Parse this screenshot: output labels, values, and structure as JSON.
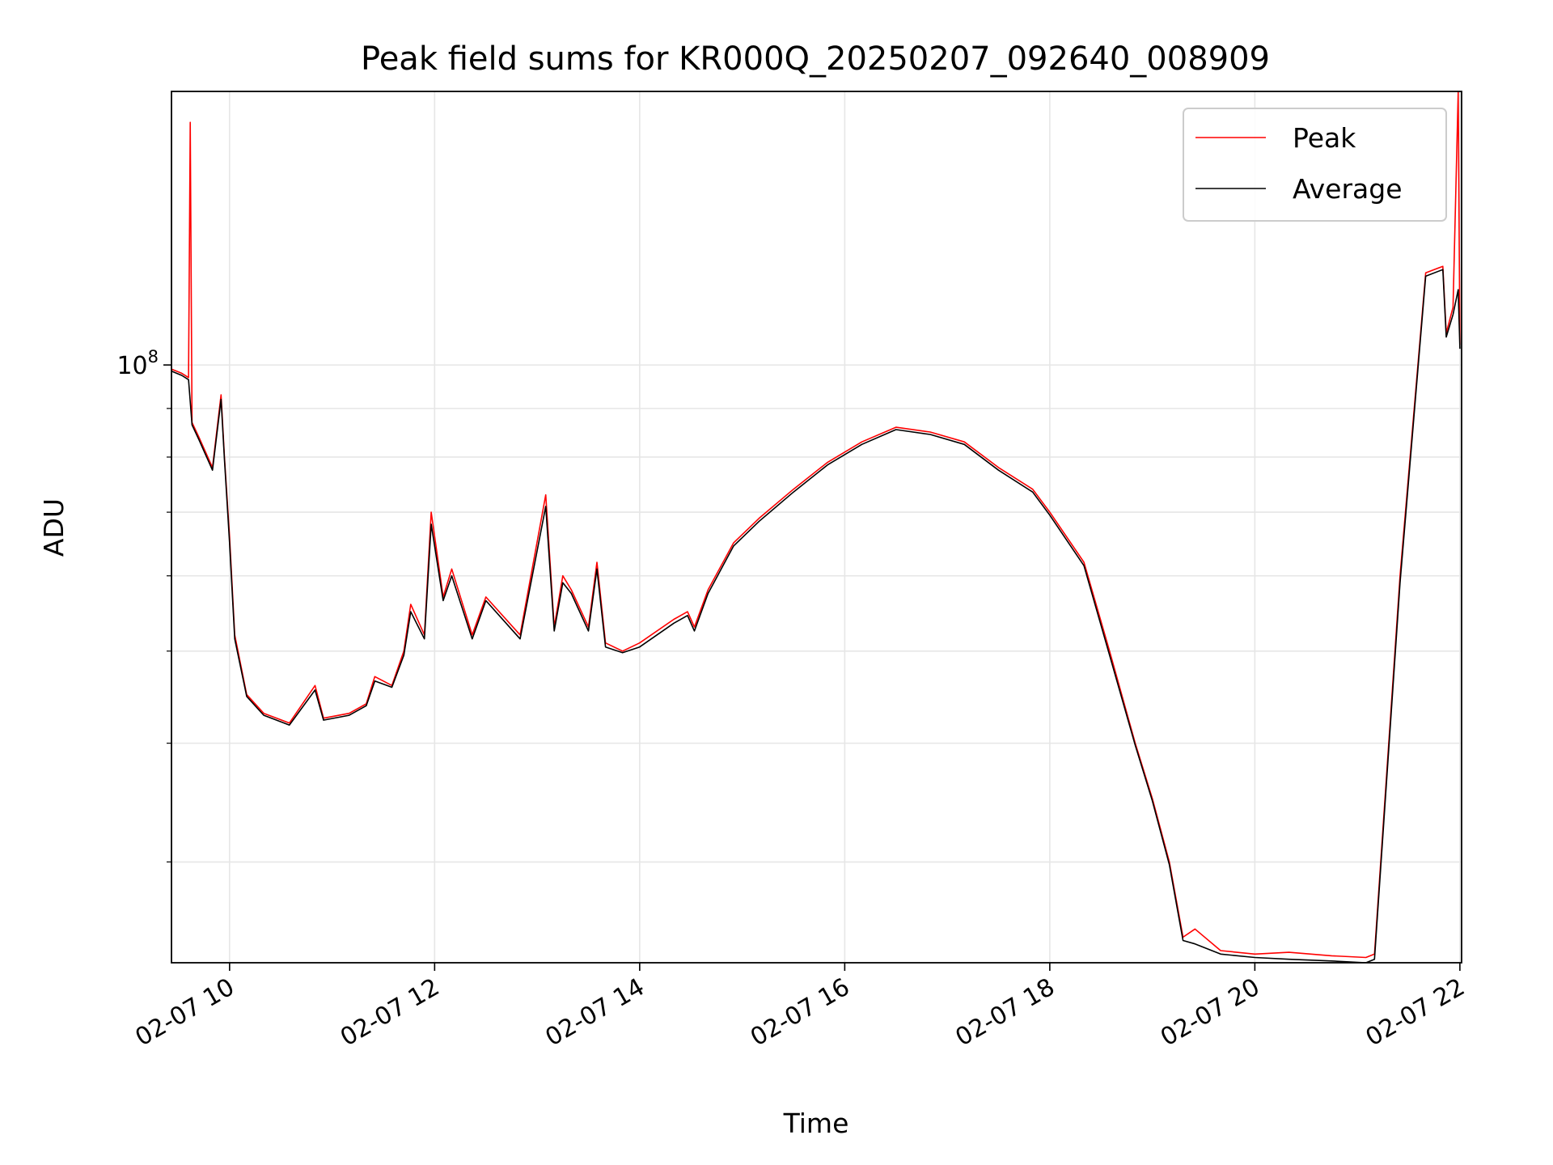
{
  "chart_data": {
    "type": "line",
    "title": "Peak field sums for KR000Q_20250207_092640_008909",
    "xlabel": "Time",
    "ylabel": "ADU",
    "y_scale": "log",
    "y_tick_label": {
      "base": "10",
      "exp": "8",
      "value": 100000000
    },
    "ylim": [
      23500000,
      194000000
    ],
    "x_range": [
      "02-07 09:26",
      "02-07 22:01"
    ],
    "x_ticks": [
      "02-07 10",
      "02-07 12",
      "02-07 14",
      "02-07 16",
      "02-07 18",
      "02-07 20",
      "02-07 22"
    ],
    "grid": true,
    "legend_position": "top-right",
    "colors": {
      "Peak": "#ff0000",
      "Average": "#000000"
    },
    "series": [
      {
        "name": "Peak",
        "x": [
          "02-07 09:26",
          "02-07 09:32",
          "02-07 09:36",
          "02-07 09:37",
          "02-07 09:38",
          "02-07 09:42",
          "02-07 09:50",
          "02-07 09:55",
          "02-07 09:57",
          "02-07 10:00",
          "02-07 10:03",
          "02-07 10:10",
          "02-07 10:20",
          "02-07 10:35",
          "02-07 10:50",
          "02-07 10:55",
          "02-07 11:10",
          "02-07 11:20",
          "02-07 11:25",
          "02-07 11:35",
          "02-07 11:42",
          "02-07 11:46",
          "02-07 11:54",
          "02-07 11:58",
          "02-07 12:05",
          "02-07 12:10",
          "02-07 12:22",
          "02-07 12:30",
          "02-07 12:50",
          "02-07 13:05",
          "02-07 13:10",
          "02-07 13:15",
          "02-07 13:20",
          "02-07 13:30",
          "02-07 13:35",
          "02-07 13:40",
          "02-07 13:50",
          "02-07 14:00",
          "02-07 14:20",
          "02-07 14:28",
          "02-07 14:32",
          "02-07 14:40",
          "02-07 14:55",
          "02-07 15:10",
          "02-07 15:30",
          "02-07 15:50",
          "02-07 16:10",
          "02-07 16:30",
          "02-07 16:50",
          "02-07 17:10",
          "02-07 17:30",
          "02-07 17:50",
          "02-07 18:00",
          "02-07 18:20",
          "02-07 18:35",
          "02-07 18:50",
          "02-07 19:00",
          "02-07 19:10",
          "02-07 19:18",
          "02-07 19:25",
          "02-07 19:40",
          "02-07 20:00",
          "02-07 20:20",
          "02-07 20:45",
          "02-07 21:05",
          "02-07 21:10",
          "02-07 21:25",
          "02-07 21:40",
          "02-07 21:50",
          "02-07 21:52",
          "02-07 21:56",
          "02-07 21:59",
          "02-07 22:00"
        ],
        "y": [
          99000000,
          98000000,
          97000000,
          180000000,
          87000000,
          84000000,
          78000000,
          93000000,
          80000000,
          66000000,
          52000000,
          45000000,
          43000000,
          42000000,
          46000000,
          42500000,
          43000000,
          44000000,
          47000000,
          46000000,
          50000000,
          56000000,
          52000000,
          70000000,
          57000000,
          61000000,
          52000000,
          57000000,
          52000000,
          73000000,
          53000000,
          60000000,
          58000000,
          53000000,
          62000000,
          51000000,
          50000000,
          51000000,
          54000000,
          55000000,
          53000000,
          58000000,
          65000000,
          69000000,
          74000000,
          79000000,
          83000000,
          86000000,
          85000000,
          83000000,
          78000000,
          74000000,
          70000000,
          62000000,
          50000000,
          40000000,
          35000000,
          30000000,
          25000000,
          25500000,
          24200000,
          24000000,
          24100000,
          23900000,
          23800000,
          24000000,
          60000000,
          125000000,
          127000000,
          108000000,
          115000000,
          194000000,
          105000000
        ]
      },
      {
        "name": "Average",
        "x": [
          "02-07 09:26",
          "02-07 09:32",
          "02-07 09:36",
          "02-07 09:38",
          "02-07 09:42",
          "02-07 09:50",
          "02-07 09:55",
          "02-07 09:57",
          "02-07 10:00",
          "02-07 10:03",
          "02-07 10:10",
          "02-07 10:20",
          "02-07 10:35",
          "02-07 10:50",
          "02-07 10:55",
          "02-07 11:10",
          "02-07 11:20",
          "02-07 11:25",
          "02-07 11:35",
          "02-07 11:42",
          "02-07 11:46",
          "02-07 11:54",
          "02-07 11:58",
          "02-07 12:05",
          "02-07 12:10",
          "02-07 12:22",
          "02-07 12:30",
          "02-07 12:50",
          "02-07 13:05",
          "02-07 13:10",
          "02-07 13:15",
          "02-07 13:20",
          "02-07 13:30",
          "02-07 13:35",
          "02-07 13:40",
          "02-07 13:50",
          "02-07 14:00",
          "02-07 14:20",
          "02-07 14:28",
          "02-07 14:32",
          "02-07 14:40",
          "02-07 14:55",
          "02-07 15:10",
          "02-07 15:30",
          "02-07 15:50",
          "02-07 16:10",
          "02-07 16:30",
          "02-07 16:50",
          "02-07 17:10",
          "02-07 17:30",
          "02-07 17:50",
          "02-07 18:00",
          "02-07 18:20",
          "02-07 18:35",
          "02-07 18:50",
          "02-07 19:00",
          "02-07 19:10",
          "02-07 19:18",
          "02-07 19:25",
          "02-07 19:40",
          "02-07 20:00",
          "02-07 20:20",
          "02-07 20:45",
          "02-07 21:05",
          "02-07 21:10",
          "02-07 21:25",
          "02-07 21:40",
          "02-07 21:50",
          "02-07 21:52",
          "02-07 21:56",
          "02-07 21:59",
          "02-07 22:00"
        ],
        "y": [
          98500000,
          97500000,
          96500000,
          86500000,
          83500000,
          77500000,
          92000000,
          79500000,
          65000000,
          51500000,
          44800000,
          42800000,
          41800000,
          45500000,
          42300000,
          42800000,
          43800000,
          46500000,
          45800000,
          49500000,
          55000000,
          51500000,
          68000000,
          56500000,
          60000000,
          51500000,
          56500000,
          51500000,
          71000000,
          52500000,
          59000000,
          57500000,
          52500000,
          61000000,
          50500000,
          49800000,
          50500000,
          53500000,
          54500000,
          52500000,
          57500000,
          64500000,
          68500000,
          73500000,
          78500000,
          82500000,
          85500000,
          84500000,
          82500000,
          77500000,
          73500000,
          69500000,
          61500000,
          49500000,
          39800000,
          34800000,
          29800000,
          24800000,
          24600000,
          24000000,
          23800000,
          23700000,
          23600000,
          23500000,
          23700000,
          59000000,
          124000000,
          126000000,
          107000000,
          113000000,
          120000000,
          104000000
        ]
      }
    ],
    "legend": [
      {
        "name": "Peak",
        "color": "#ff0000"
      },
      {
        "name": "Average",
        "color": "#000000"
      }
    ]
  }
}
